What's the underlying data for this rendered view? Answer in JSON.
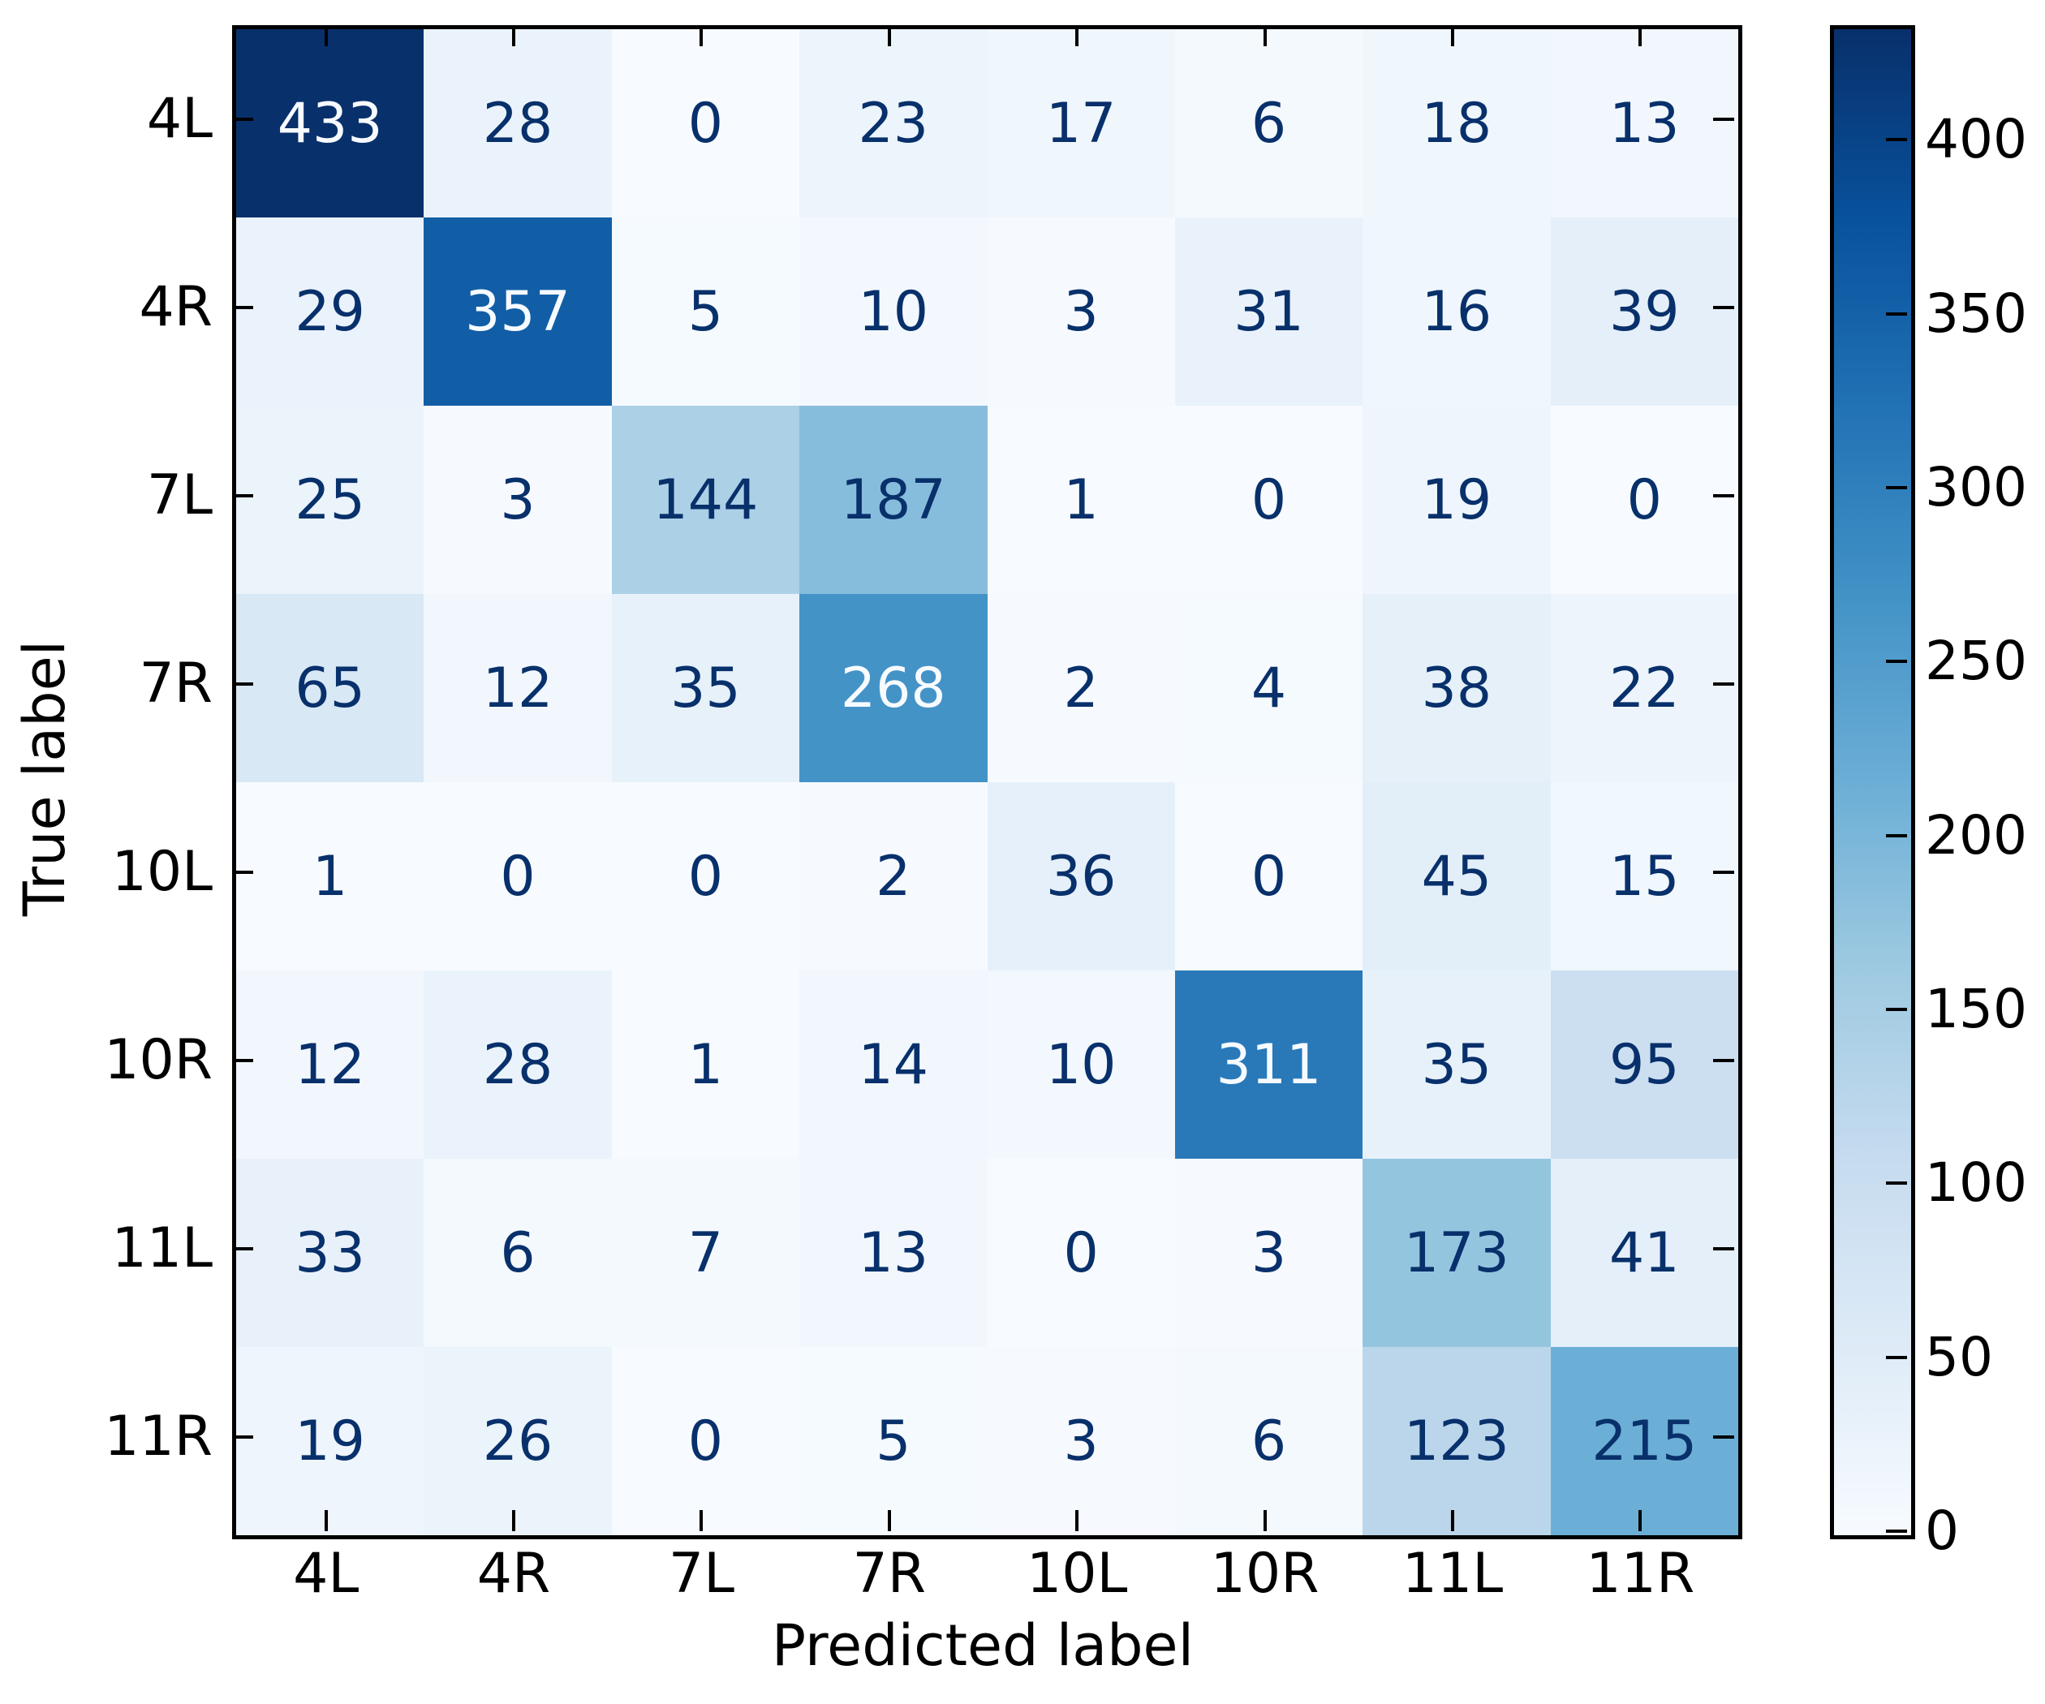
{
  "chart_data": {
    "type": "heatmap",
    "subtype": "confusion-matrix",
    "title": "",
    "xlabel": "Predicted label",
    "ylabel": "True label",
    "x_categories": [
      "4L",
      "4R",
      "7L",
      "7R",
      "10L",
      "10R",
      "11L",
      "11R"
    ],
    "y_categories": [
      "4L",
      "4R",
      "7L",
      "7R",
      "10L",
      "10R",
      "11L",
      "11R"
    ],
    "matrix": [
      [
        433,
        28,
        0,
        23,
        17,
        6,
        18,
        13
      ],
      [
        29,
        357,
        5,
        10,
        3,
        31,
        16,
        39
      ],
      [
        25,
        3,
        144,
        187,
        1,
        0,
        19,
        0
      ],
      [
        65,
        12,
        35,
        268,
        2,
        4,
        38,
        22
      ],
      [
        1,
        0,
        0,
        2,
        36,
        0,
        45,
        15
      ],
      [
        12,
        28,
        1,
        14,
        10,
        311,
        35,
        95
      ],
      [
        33,
        6,
        7,
        13,
        0,
        3,
        173,
        41
      ],
      [
        19,
        26,
        0,
        5,
        3,
        6,
        123,
        215
      ]
    ],
    "vmin": 0,
    "vmax": 433,
    "colormap": "Blues",
    "colormap_stops": [
      "#f7fbff",
      "#deebf7",
      "#c6dbef",
      "#9ecae1",
      "#6baed6",
      "#4292c6",
      "#2171b5",
      "#08519c",
      "#08306b"
    ],
    "colorbar_ticks": [
      0,
      50,
      100,
      150,
      200,
      250,
      300,
      350,
      400
    ],
    "colorbar_position": "right",
    "cell_text_dark": "#08306b",
    "cell_text_light": "#f7fbff",
    "axis_color": "#000000",
    "background": "#ffffff",
    "grid": false
  }
}
